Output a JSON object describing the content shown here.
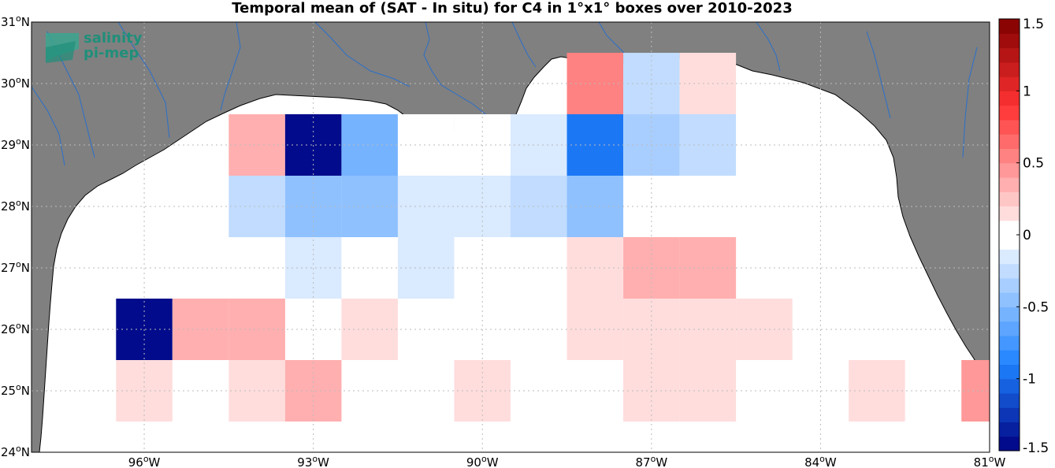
{
  "title": "Temporal mean of (SAT - In situ) for C4 in 1°x1° boxes over 2010-2023",
  "logo": {
    "line1": "salinity",
    "line2": "pi-mep"
  },
  "map": {
    "lon_range": [
      -98,
      -81
    ],
    "lat_range": [
      24,
      31
    ],
    "lon_ticks": [
      {
        "lon": -96,
        "deg": "96",
        "hem": "W"
      },
      {
        "lon": -93,
        "deg": "93",
        "hem": "W"
      },
      {
        "lon": -90,
        "deg": "90",
        "hem": "W"
      },
      {
        "lon": -87,
        "deg": "87",
        "hem": "W"
      },
      {
        "lon": -84,
        "deg": "84",
        "hem": "W"
      },
      {
        "lon": -81,
        "deg": "81",
        "hem": "W"
      }
    ],
    "lat_ticks": [
      {
        "lat": 24,
        "deg": "24",
        "hem": "N"
      },
      {
        "lat": 25,
        "deg": "25",
        "hem": "N"
      },
      {
        "lat": 26,
        "deg": "26",
        "hem": "N"
      },
      {
        "lat": 27,
        "deg": "27",
        "hem": "N"
      },
      {
        "lat": 28,
        "deg": "28",
        "hem": "N"
      },
      {
        "lat": 29,
        "deg": "29",
        "hem": "N"
      },
      {
        "lat": 30,
        "deg": "30",
        "hem": "N"
      },
      {
        "lat": 31,
        "deg": "31",
        "hem": "N"
      }
    ],
    "colors": {
      "land": "#808080",
      "ocean": "#ffffff",
      "rivers": "#2a6fc9",
      "grid": "#bbbbbb"
    }
  },
  "colorbar": {
    "vmin": -1.5,
    "vmax": 1.5,
    "ticks": [
      "1.5",
      "1",
      "0.5",
      "0",
      "-0.5",
      "-1",
      "-1.5"
    ],
    "tick_values": [
      1.5,
      1,
      0.5,
      0,
      -0.5,
      -1,
      -1.5
    ]
  },
  "chart_data": {
    "type": "heatmap",
    "title": "Temporal mean of (SAT - In situ) for C4 in 1°x1° boxes over 2010-2023",
    "units": "",
    "cell_size_deg": 1,
    "cells": [
      {
        "lon": -94,
        "lat": 29,
        "value": 0.3
      },
      {
        "lon": -93,
        "lat": 29,
        "value": -1.5
      },
      {
        "lon": -92,
        "lat": 29,
        "value": -0.55
      },
      {
        "lon": -91,
        "lat": 29,
        "value": 0.0
      },
      {
        "lon": -90,
        "lat": 29,
        "value": 0.0
      },
      {
        "lon": -89,
        "lat": 29,
        "value": -0.2
      },
      {
        "lon": -88,
        "lat": 30,
        "value": 0.5
      },
      {
        "lon": -88,
        "lat": 29,
        "value": -0.95
      },
      {
        "lon": -87,
        "lat": 30,
        "value": -0.25
      },
      {
        "lon": -87,
        "lat": 29,
        "value": -0.4
      },
      {
        "lon": -86,
        "lat": 30,
        "value": 0.15
      },
      {
        "lon": -86,
        "lat": 29,
        "value": -0.25
      },
      {
        "lon": -94,
        "lat": 28,
        "value": -0.25
      },
      {
        "lon": -93,
        "lat": 28,
        "value": -0.5
      },
      {
        "lon": -92,
        "lat": 28,
        "value": -0.5
      },
      {
        "lon": -91,
        "lat": 28,
        "value": -0.15
      },
      {
        "lon": -90,
        "lat": 28,
        "value": -0.15
      },
      {
        "lon": -89,
        "lat": 28,
        "value": -0.25
      },
      {
        "lon": -88,
        "lat": 28,
        "value": -0.5
      },
      {
        "lon": -93,
        "lat": 27,
        "value": -0.15
      },
      {
        "lon": -91,
        "lat": 27,
        "value": -0.15
      },
      {
        "lon": -88,
        "lat": 27,
        "value": 0.15
      },
      {
        "lon": -87,
        "lat": 27,
        "value": 0.3
      },
      {
        "lon": -86,
        "lat": 27,
        "value": 0.3
      },
      {
        "lon": -96,
        "lat": 26,
        "value": -1.5
      },
      {
        "lon": -95,
        "lat": 26,
        "value": 0.3
      },
      {
        "lon": -94,
        "lat": 26,
        "value": 0.3
      },
      {
        "lon": -92,
        "lat": 26,
        "value": 0.15
      },
      {
        "lon": -88,
        "lat": 26,
        "value": 0.15
      },
      {
        "lon": -87,
        "lat": 26,
        "value": 0.15
      },
      {
        "lon": -86,
        "lat": 26,
        "value": 0.15
      },
      {
        "lon": -85,
        "lat": 26,
        "value": 0.15
      },
      {
        "lon": -96,
        "lat": 25,
        "value": 0.15
      },
      {
        "lon": -94,
        "lat": 25,
        "value": 0.15
      },
      {
        "lon": -93,
        "lat": 25,
        "value": 0.3
      },
      {
        "lon": -90,
        "lat": 25,
        "value": 0.15
      },
      {
        "lon": -87,
        "lat": 25,
        "value": 0.15
      },
      {
        "lon": -86,
        "lat": 25,
        "value": 0.15
      },
      {
        "lon": -83,
        "lat": 25,
        "value": 0.15
      },
      {
        "lon": -81,
        "lat": 25,
        "value": 0.45
      }
    ]
  }
}
